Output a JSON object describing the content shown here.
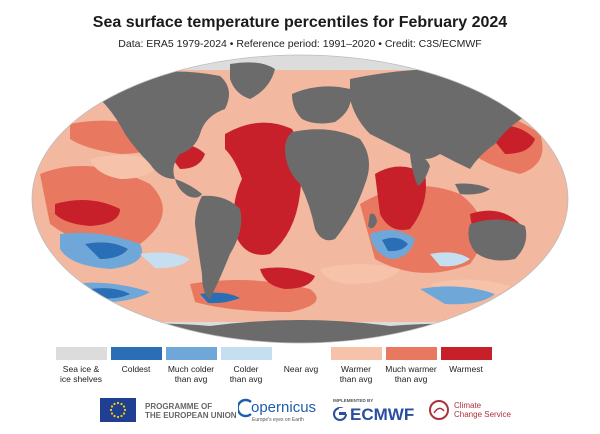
{
  "header": {
    "title": "Sea surface temperature percentiles for February 2024",
    "subtitle": "Data: ERA5 1979-2024 • Reference period: 1991–2020 • Credit: C3S/ECMWF"
  },
  "legend": [
    {
      "label": "Sea ice &\nice shelves",
      "color": "#dcdcdc"
    },
    {
      "label": "Coldest",
      "color": "#2a6fb5"
    },
    {
      "label": "Much colder\nthan avg",
      "color": "#6fa8d8"
    },
    {
      "label": "Colder\nthan avg",
      "color": "#c5dff0"
    },
    {
      "label": "Near avg",
      "color": "#ffffff"
    },
    {
      "label": "Warmer\nthan avg",
      "color": "#f6c3aa"
    },
    {
      "label": "Much warmer\nthan avg",
      "color": "#e8785f"
    },
    {
      "label": "Warmest",
      "color": "#c8202a"
    }
  ],
  "logos": {
    "eu": {
      "line1": "PROGRAMME OF",
      "line2": "THE EUROPEAN UNION"
    },
    "copernicus": {
      "name": "opernicus",
      "tagline": "Europe's eyes on Earth"
    },
    "ecmwf": {
      "prefix": "IMPLEMENTED BY",
      "name": "ECMWF"
    },
    "c3s": {
      "line1": "Climate",
      "line2": "Change Service"
    }
  },
  "colors": {
    "land": "#6b6b6b",
    "ocean_base": "#f2b8a0",
    "warmest": "#c8202a",
    "much_warmer": "#e8785f",
    "warmer": "#f6c3aa",
    "colder": "#c5dff0",
    "much_colder": "#6fa8d8",
    "coldest": "#2a6fb5",
    "ice": "#dcdcdc",
    "eu_blue": "#1f3f93",
    "ecmwf_blue": "#2a4ea0",
    "c3s_red": "#b0303a"
  }
}
